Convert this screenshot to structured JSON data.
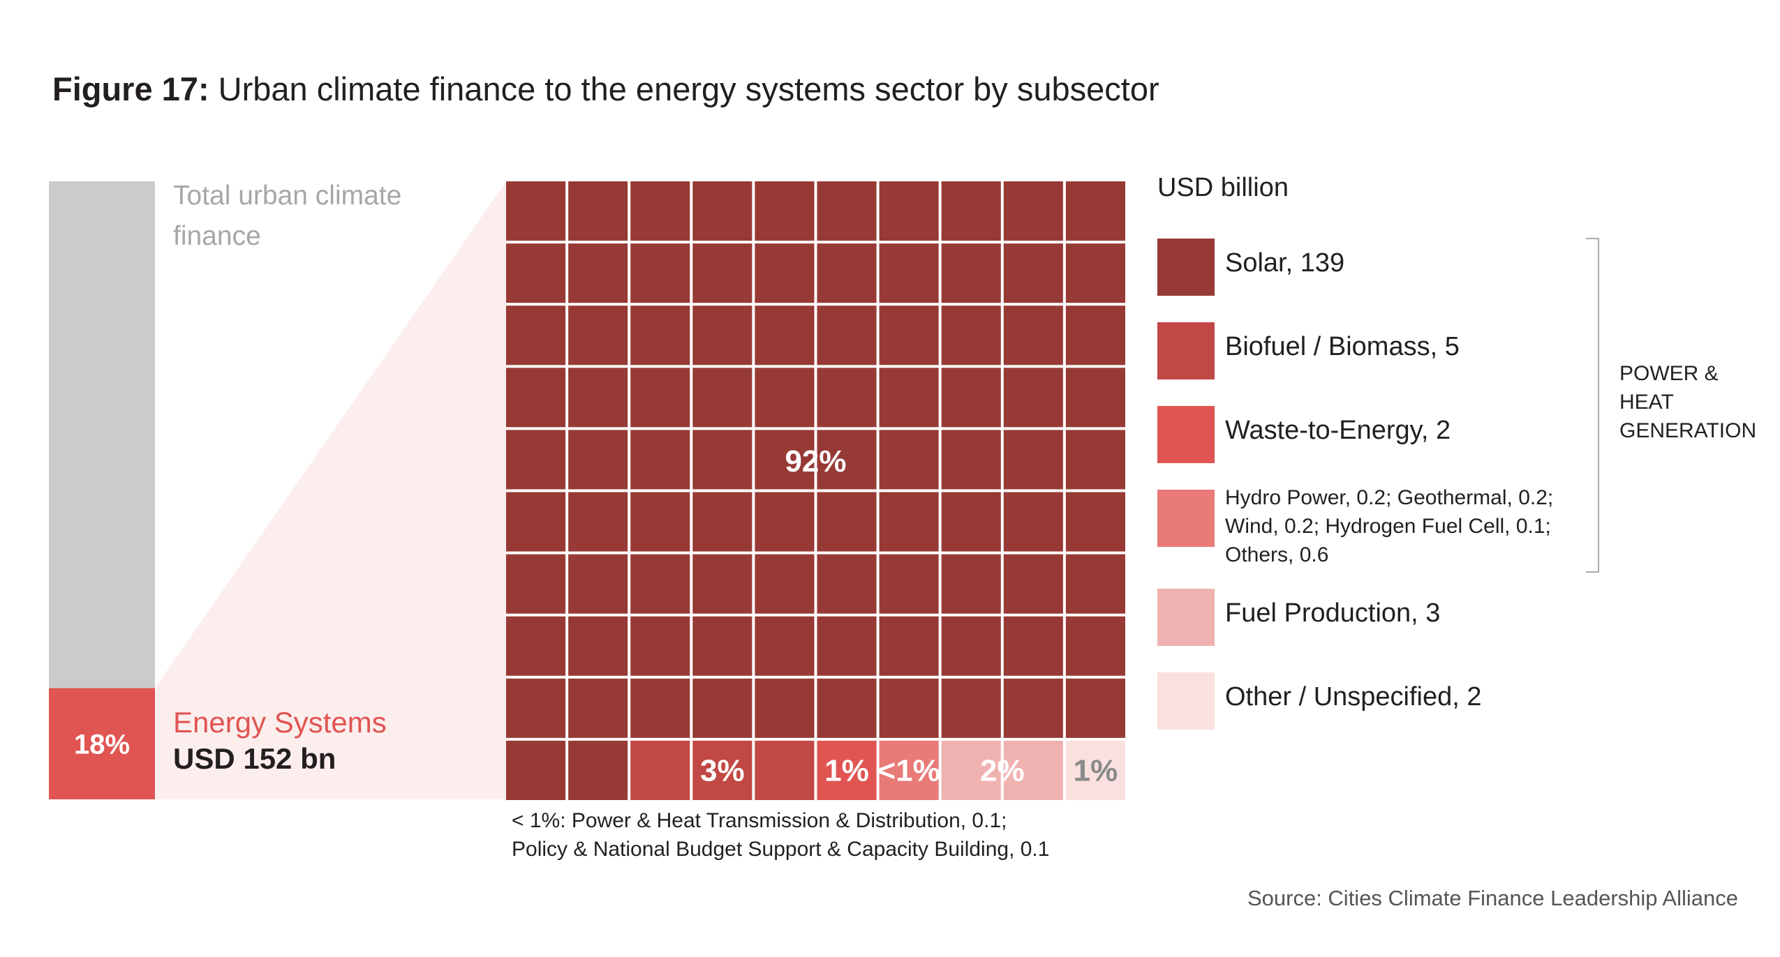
{
  "figure": {
    "label": "Figure 17:",
    "title": "Urban climate finance to the energy systems sector by subsector"
  },
  "total_bar": {
    "label": "Total urban climate finance",
    "share_pct": 18,
    "share_text": "18%",
    "highlight_label": "Energy Systems",
    "highlight_amount": "USD 152 bn",
    "colors": {
      "total": "#cccbcc",
      "highlight": "#e05552",
      "fan": "#fdeeee"
    }
  },
  "legend": {
    "unit": "USD billion",
    "group_label": "POWER & HEAT GENERATION",
    "items": [
      {
        "label": "Solar, 139",
        "color": "#973a36"
      },
      {
        "label": "Biofuel / Biomass, 5",
        "color": "#c14844"
      },
      {
        "label": "Waste-to-Energy, 2",
        "color": "#e05552"
      },
      {
        "label": "Hydro Power, 0.2; Geothermal, 0.2; Wind, 0.2; Hydrogen Fuel Cell, 0.1; Others, 0.6",
        "line1": "Hydro Power, 0.2; Geothermal, 0.2;",
        "line2": "Wind, 0.2; Hydrogen Fuel Cell, 0.1;",
        "line3": "Others, 0.6",
        "color": "#e87a77"
      },
      {
        "label": "Fuel Production, 3",
        "color": "#f0b2b0"
      },
      {
        "label": "Other / Unspecified, 2",
        "color": "#fae0df"
      }
    ]
  },
  "chart_data": {
    "type": "waffle",
    "unit": "USD billion",
    "grid": {
      "rows": 10,
      "cols": 10
    },
    "categories": [
      "Solar",
      "Biofuel / Biomass",
      "Waste-to-Energy",
      "Hydro Power, Geothermal, Wind, Hydrogen Fuel Cell, Others",
      "Fuel Production",
      "Other / Unspecified"
    ],
    "series": [
      {
        "name": "Solar",
        "value": 139,
        "cells": 92,
        "pct_label": "92%",
        "color": "#973a36"
      },
      {
        "name": "Biofuel / Biomass",
        "value": 5,
        "cells": 3,
        "pct_label": "3%",
        "color": "#c14844"
      },
      {
        "name": "Waste-to-Energy",
        "value": 2,
        "cells": 1,
        "pct_label": "1%",
        "color": "#e05552"
      },
      {
        "name": "Hydro Power, Geothermal, Wind, Hydrogen Fuel Cell, Others",
        "value": 1.3,
        "cells": 1,
        "pct_label": "<1%",
        "color": "#e87a77"
      },
      {
        "name": "Fuel Production",
        "value": 3,
        "cells": 2,
        "pct_label": "2%",
        "color": "#f0b2b0"
      },
      {
        "name": "Other / Unspecified",
        "value": 2,
        "cells": 1,
        "pct_label": "1%",
        "color": "#fae0df"
      }
    ]
  },
  "footnote": {
    "line1": "< 1%: Power & Heat Transmission & Distribution, 0.1;",
    "line2": "Policy & National Budget Support & Capacity Building, 0.1"
  },
  "source": "Source: Cities Climate Finance Leadership Alliance"
}
